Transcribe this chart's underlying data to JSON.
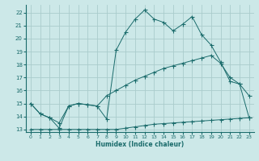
{
  "xlabel": "Humidex (Indice chaleur)",
  "bg_color": "#cce8e8",
  "grid_color": "#aacccc",
  "line_color": "#1a6b6b",
  "xlim": [
    -0.5,
    23.5
  ],
  "ylim": [
    12.8,
    22.6
  ],
  "yticks": [
    13,
    14,
    15,
    16,
    17,
    18,
    19,
    20,
    21,
    22
  ],
  "xticks": [
    0,
    1,
    2,
    3,
    4,
    5,
    6,
    7,
    8,
    9,
    10,
    11,
    12,
    13,
    14,
    15,
    16,
    17,
    18,
    19,
    20,
    21,
    22,
    23
  ],
  "line1_x": [
    0,
    1,
    2,
    3,
    4,
    5,
    6,
    7,
    8,
    9,
    10,
    11,
    12,
    13,
    14,
    15,
    16,
    17,
    18,
    19,
    20,
    21,
    22,
    23
  ],
  "line1_y": [
    15.0,
    14.2,
    13.9,
    13.1,
    14.8,
    15.0,
    14.9,
    14.8,
    13.8,
    19.1,
    20.5,
    21.5,
    22.2,
    21.5,
    21.25,
    20.6,
    21.1,
    21.7,
    20.3,
    19.5,
    18.2,
    16.7,
    16.5,
    15.6
  ],
  "line2_x": [
    0,
    1,
    2,
    3,
    4,
    5,
    6,
    7,
    8,
    9,
    10,
    11,
    12,
    13,
    14,
    15,
    16,
    17,
    18,
    19,
    20,
    21,
    22,
    23
  ],
  "line2_y": [
    15.0,
    14.2,
    13.9,
    13.5,
    14.8,
    15.0,
    14.9,
    14.8,
    15.6,
    16.0,
    16.4,
    16.8,
    17.1,
    17.4,
    17.7,
    17.9,
    18.1,
    18.3,
    18.5,
    18.7,
    18.1,
    17.0,
    16.5,
    13.9
  ],
  "line3_x": [
    0,
    1,
    2,
    3,
    4,
    5,
    6,
    7,
    8,
    9,
    10,
    11,
    12,
    13,
    14,
    15,
    16,
    17,
    18,
    19,
    20,
    21,
    22,
    23
  ],
  "line3_y": [
    13.0,
    13.0,
    13.0,
    13.0,
    13.0,
    13.0,
    13.0,
    13.0,
    13.0,
    13.0,
    13.1,
    13.2,
    13.3,
    13.4,
    13.45,
    13.5,
    13.55,
    13.6,
    13.65,
    13.7,
    13.75,
    13.8,
    13.85,
    13.9
  ]
}
